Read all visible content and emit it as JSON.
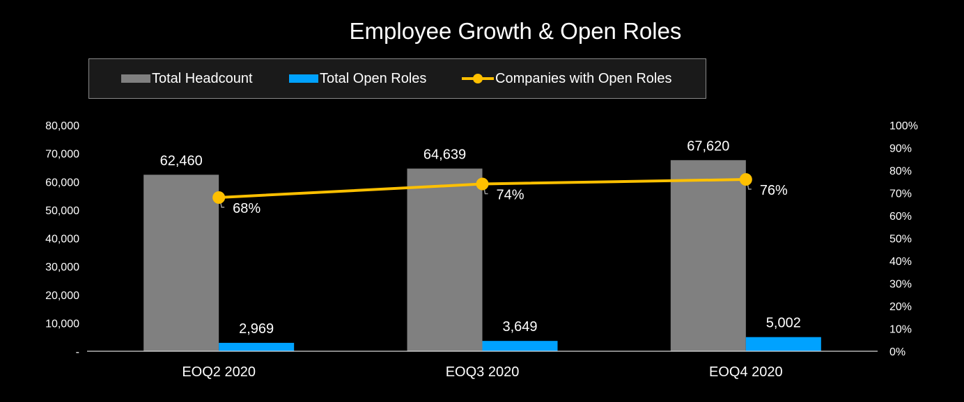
{
  "chart_data": {
    "type": "bar",
    "title": "Employee Growth & Open Roles",
    "categories": [
      "EOQ2 2020",
      "EOQ3 2020",
      "EOQ4 2020"
    ],
    "series": [
      {
        "name": "Total Headcount",
        "kind": "bar",
        "axis": "left",
        "color": "#808080",
        "values": [
          62460,
          64639,
          67620
        ],
        "labels": [
          "62,460",
          "64,639",
          "67,620"
        ]
      },
      {
        "name": "Total Open Roles",
        "kind": "bar",
        "axis": "left",
        "color": "#00A2FF",
        "values": [
          2969,
          3649,
          5002
        ],
        "labels": [
          "2,969",
          "3,649",
          "5,002"
        ]
      },
      {
        "name": "Companies with Open Roles",
        "kind": "line",
        "axis": "right",
        "color": "#FFC000",
        "values": [
          68,
          74,
          76
        ],
        "labels": [
          "68%",
          "74%",
          "76%"
        ]
      }
    ],
    "ylim": [
      0,
      80000
    ],
    "y2lim": [
      0,
      100
    ],
    "y_ticks": [
      0,
      10000,
      20000,
      30000,
      40000,
      50000,
      60000,
      70000,
      80000
    ],
    "y_tick_labels": [
      "-",
      "10,000",
      "20,000",
      "30,000",
      "40,000",
      "50,000",
      "60,000",
      "70,000",
      "80,000"
    ],
    "y2_ticks": [
      0,
      10,
      20,
      30,
      40,
      50,
      60,
      70,
      80,
      90,
      100
    ],
    "y2_tick_labels": [
      "0%",
      "10%",
      "20%",
      "30%",
      "40%",
      "50%",
      "60%",
      "70%",
      "80%",
      "90%",
      "100%"
    ],
    "xlabel": "",
    "ylabel": "",
    "legend_position": "top",
    "grid": false
  }
}
